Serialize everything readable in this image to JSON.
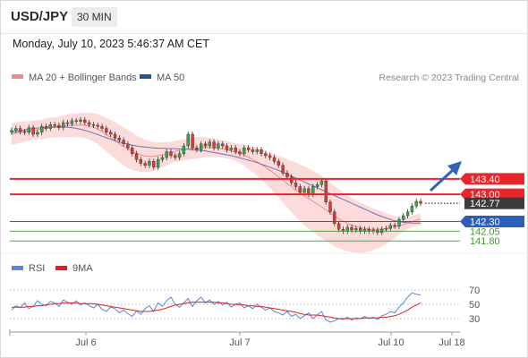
{
  "header": {
    "symbol": "USD/JPY",
    "timeframe": "30 MIN",
    "datetime": "Monday, July 10, 2023 5:46:37 AM CET"
  },
  "legend": {
    "bollinger": "MA 20 + Bollinger Bands",
    "ma50": "MA 50",
    "credit": "Research © 2023 Trading Central"
  },
  "rsi_legend": {
    "rsi": "RSI",
    "ma9": "9MA"
  },
  "colors": {
    "resistance": "#e8262b",
    "current": "#3c3c3c",
    "support_pivot": "#2c5fb8",
    "support": "#3d9b2e",
    "bollinger_fill": "#fbd6d4",
    "ma20": "#f08a86",
    "ma50": "#7373b8",
    "rsi": "#5a86d6",
    "rsi_ma": "#e02020",
    "arrow": "#2e63b5",
    "bull": "#2fa84f",
    "bear": "#d93a3a"
  },
  "chart_data": [
    {
      "type": "candlestick",
      "y_scale": "price",
      "ylim": [
        141.55,
        145.75
      ],
      "x_ticks": [
        "Jul 6",
        "Jul 7",
        "Jul 10",
        "Jul 18"
      ],
      "levels": [
        {
          "label": "143.40",
          "value": 143.4,
          "kind": "resistance"
        },
        {
          "label": "143.00",
          "value": 143.0,
          "kind": "resistance"
        },
        {
          "label": "142.77",
          "value": 142.77,
          "kind": "current"
        },
        {
          "label": "142.30",
          "value": 142.3,
          "kind": "pivot"
        },
        {
          "label": "142.05",
          "value": 142.05,
          "kind": "support"
        },
        {
          "label": "141.80",
          "value": 141.8,
          "kind": "support"
        }
      ],
      "close": [
        144.65,
        144.7,
        144.62,
        144.6,
        144.72,
        144.55,
        144.6,
        144.75,
        144.7,
        144.8,
        144.78,
        144.72,
        144.85,
        144.82,
        144.9,
        144.88,
        144.92,
        144.85,
        144.8,
        144.78,
        144.75,
        144.7,
        144.6,
        144.55,
        144.45,
        144.4,
        144.3,
        144.2,
        144.05,
        143.9,
        143.8,
        143.75,
        143.85,
        143.7,
        143.9,
        143.95,
        144.1,
        144.0,
        143.95,
        144.05,
        144.25,
        144.55,
        144.2,
        144.15,
        144.3,
        144.25,
        144.35,
        144.2,
        144.3,
        144.25,
        144.15,
        144.2,
        144.1,
        144.05,
        144.2,
        144.15,
        144.1,
        144.15,
        144.05,
        144.0,
        143.95,
        143.85,
        143.75,
        143.55,
        143.45,
        143.3,
        143.2,
        143.05,
        143.15,
        143.0,
        143.2,
        143.25,
        143.35,
        142.8,
        142.55,
        142.25,
        142.1,
        142.05,
        142.15,
        142.08,
        142.12,
        142.05,
        142.1,
        142.05,
        142.08,
        142.02,
        142.1,
        142.12,
        142.2,
        142.18,
        142.35,
        142.45,
        142.55,
        142.7,
        142.82,
        142.77
      ],
      "ma20": [
        144.55,
        144.58,
        144.6,
        144.62,
        144.63,
        144.65,
        144.67,
        144.68,
        144.7,
        144.72,
        144.73,
        144.74,
        144.76,
        144.77,
        144.78,
        144.78,
        144.79,
        144.78,
        144.76,
        144.73,
        144.68,
        144.62,
        144.54,
        144.47,
        144.39,
        144.31,
        144.24,
        144.17,
        144.11,
        144.06,
        144.02,
        143.99,
        143.98,
        143.98,
        144.0,
        144.02,
        144.05,
        144.08,
        144.11,
        144.13,
        144.15,
        144.17,
        144.19,
        144.2,
        144.21,
        144.21,
        144.21,
        144.2,
        144.19,
        144.17,
        144.15,
        144.12,
        144.09,
        144.05,
        144.01,
        143.96,
        143.9,
        143.84,
        143.77,
        143.7,
        143.62,
        143.54,
        143.45,
        143.37,
        143.28,
        143.2,
        143.12,
        143.04,
        142.96,
        142.89,
        142.82,
        142.75,
        142.68,
        142.6,
        142.52,
        142.44,
        142.37,
        142.31,
        142.25,
        142.21,
        142.17,
        142.14,
        142.12,
        142.11,
        142.1,
        142.1,
        142.11,
        142.12,
        142.14,
        142.16,
        142.19,
        142.22,
        142.26,
        142.3,
        142.33,
        142.36
      ],
      "ma50": [
        144.6,
        144.62,
        144.64,
        144.66,
        144.68,
        144.7,
        144.71,
        144.72,
        144.73,
        144.74,
        144.74,
        144.74,
        144.74,
        144.73,
        144.72,
        144.7,
        144.68,
        144.65,
        144.62,
        144.58,
        144.54,
        144.5,
        144.46,
        144.42,
        144.38,
        144.35,
        144.32,
        144.29,
        144.27,
        144.25,
        144.23,
        144.22,
        144.21,
        144.2,
        144.19,
        144.19,
        144.18,
        144.18,
        144.18,
        144.17,
        144.17,
        144.16,
        144.15,
        144.14,
        144.13,
        144.12,
        144.1,
        144.08,
        144.06,
        144.04,
        144.02,
        144.0,
        143.97,
        143.94,
        143.91,
        143.88,
        143.85,
        143.82,
        143.78,
        143.74,
        143.7,
        143.66,
        143.62,
        143.57,
        143.52,
        143.47,
        143.42,
        143.37,
        143.32,
        143.27,
        143.22,
        143.17,
        143.12,
        143.07,
        143.02,
        142.97,
        142.92,
        142.87,
        142.82,
        142.77,
        142.72,
        142.67,
        142.62,
        142.57,
        142.52,
        142.47,
        142.43,
        142.39,
        142.35,
        142.32,
        142.3,
        142.28,
        142.27,
        142.26,
        142.26,
        142.26
      ],
      "bb_width": [
        0.28,
        0.28,
        0.27,
        0.26,
        0.26,
        0.25,
        0.25,
        0.25,
        0.26,
        0.26,
        0.26,
        0.27,
        0.28,
        0.29,
        0.3,
        0.31,
        0.32,
        0.33,
        0.35,
        0.37,
        0.39,
        0.41,
        0.43,
        0.45,
        0.47,
        0.48,
        0.49,
        0.49,
        0.48,
        0.46,
        0.44,
        0.42,
        0.4,
        0.37,
        0.34,
        0.32,
        0.3,
        0.28,
        0.27,
        0.27,
        0.27,
        0.28,
        0.28,
        0.28,
        0.27,
        0.26,
        0.25,
        0.24,
        0.23,
        0.22,
        0.22,
        0.22,
        0.23,
        0.25,
        0.27,
        0.3,
        0.33,
        0.36,
        0.39,
        0.42,
        0.46,
        0.5,
        0.54,
        0.58,
        0.62,
        0.66,
        0.7,
        0.73,
        0.76,
        0.78,
        0.79,
        0.8,
        0.8,
        0.8,
        0.79,
        0.78,
        0.76,
        0.74,
        0.72,
        0.7,
        0.68,
        0.65,
        0.62,
        0.58,
        0.54,
        0.5,
        0.45,
        0.4,
        0.34,
        0.28,
        0.22,
        0.18,
        0.16,
        0.15,
        0.15,
        0.15
      ]
    },
    {
      "type": "line",
      "ylim": [
        20,
        80
      ],
      "y_ticks": [
        "70",
        "50",
        "30"
      ],
      "overbought": 70,
      "oversold": 30,
      "rsi": [
        42,
        48,
        45,
        52,
        44,
        47,
        55,
        50,
        48,
        54,
        52,
        47,
        56,
        53,
        50,
        55,
        49,
        52,
        48,
        45,
        50,
        43,
        40,
        46,
        44,
        38,
        42,
        37,
        33,
        41,
        36,
        44,
        48,
        40,
        52,
        47,
        55,
        60,
        50,
        46,
        52,
        58,
        47,
        55,
        60,
        52,
        56,
        50,
        54,
        49,
        53,
        46,
        50,
        52,
        45,
        48,
        44,
        50,
        46,
        42,
        45,
        40,
        38,
        35,
        40,
        33,
        36,
        30,
        34,
        38,
        30,
        35,
        40,
        28,
        25,
        27,
        30,
        29,
        32,
        28,
        31,
        30,
        33,
        30,
        32,
        29,
        34,
        36,
        40,
        38,
        46,
        52,
        60,
        66,
        64,
        63
      ],
      "ma9": [
        46,
        46,
        46,
        46,
        47,
        47,
        48,
        48,
        49,
        50,
        51,
        51,
        52,
        52,
        52,
        52,
        51,
        51,
        51,
        51,
        50,
        49,
        48,
        47,
        46,
        45,
        44,
        43,
        42,
        41,
        40,
        40,
        40,
        41,
        42,
        43,
        45,
        47,
        49,
        50,
        51,
        52,
        53,
        53,
        53,
        53,
        53,
        53,
        52,
        52,
        51,
        50,
        50,
        49,
        49,
        48,
        48,
        47,
        47,
        46,
        45,
        44,
        43,
        42,
        41,
        40,
        39,
        37,
        36,
        35,
        35,
        35,
        34,
        33,
        32,
        31,
        30,
        30,
        30,
        30,
        30,
        30,
        31,
        31,
        31,
        31,
        32,
        32,
        33,
        34,
        36,
        39,
        42,
        46,
        49,
        52
      ]
    }
  ]
}
